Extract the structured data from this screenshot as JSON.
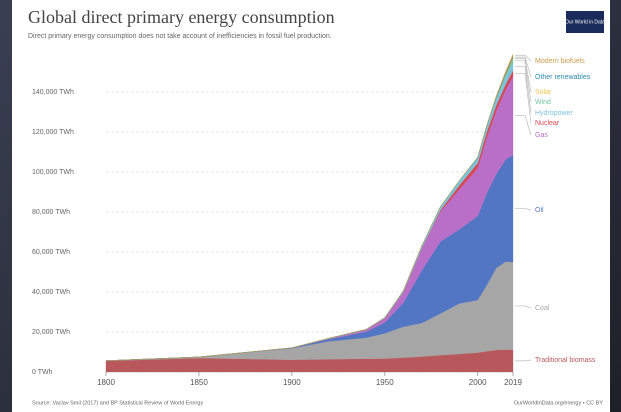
{
  "chart_data": {
    "type": "stacked-area",
    "title": "Global direct primary energy consumption",
    "subtitle": "Direct primary energy consumption does not take account of inefficiencies in fossil fuel production.",
    "logo": "Our World in Data",
    "source": "Source: Vaclav Smil (2017) and BP Statistical Review of World Energy",
    "credit": "OurWorldInData.org/energy • CC BY",
    "x": [
      1800,
      1850,
      1900,
      1920,
      1940,
      1950,
      1960,
      1970,
      1980,
      1990,
      2000,
      2005,
      2010,
      2015,
      2019
    ],
    "xlim": [
      1800,
      2019
    ],
    "xticks": [
      1800,
      1850,
      1900,
      1950,
      2000,
      2019
    ],
    "ylim": [
      0,
      160000
    ],
    "yticks": [
      {
        "value": 0,
        "label": "0 TWh"
      },
      {
        "value": 20000,
        "label": "20,000 TWh"
      },
      {
        "value": 40000,
        "label": "40,000 TWh"
      },
      {
        "value": 60000,
        "label": "60,000 TWh"
      },
      {
        "value": 80000,
        "label": "80,000 TWh"
      },
      {
        "value": 100000,
        "label": "100,000 TWh"
      },
      {
        "value": 120000,
        "label": "120,000 TWh"
      },
      {
        "value": 140000,
        "label": "140,000 TWh"
      }
    ],
    "grid": true,
    "series": [
      {
        "name": "Traditional biomass",
        "color": "#b8575c",
        "values": [
          5556,
          6945,
          6111,
          6360,
          6640,
          6700,
          7200,
          7700,
          8450,
          9000,
          9700,
          10400,
          11000,
          11200,
          11111
        ]
      },
      {
        "name": "Coal",
        "color": "#a6a6a6",
        "values": [
          97,
          569,
          5728,
          9000,
          10500,
          12603,
          15442,
          16800,
          20800,
          25200,
          26300,
          33200,
          41000,
          44000,
          43850
        ]
      },
      {
        "name": "Oil",
        "color": "#5276c4",
        "values": [
          0,
          0,
          181,
          1100,
          3000,
          5444,
          12000,
          26400,
          36000,
          37000,
          42000,
          46000,
          47000,
          51000,
          53620
        ]
      },
      {
        "name": "Gas",
        "color": "#b96fc8",
        "values": [
          0,
          0,
          64,
          230,
          900,
          2092,
          5300,
          11000,
          15000,
          20000,
          24000,
          28000,
          31600,
          35000,
          39292
        ]
      },
      {
        "name": "Nuclear",
        "color": "#d9474f",
        "values": [
          0,
          0,
          0,
          0,
          0,
          0,
          0,
          80,
          713,
          2000,
          2508,
          2700,
          2756,
          2600,
          2796
        ]
      },
      {
        "name": "Hydropower",
        "color": "#7cc3dc",
        "values": [
          0,
          0,
          0,
          200,
          300,
          332,
          688,
          1186,
          1725,
          2153,
          2613,
          2900,
          3425,
          3900,
          4222
        ]
      },
      {
        "name": "Wind",
        "color": "#74c7a2",
        "values": [
          0,
          0,
          0,
          0,
          0,
          0,
          0,
          0,
          0,
          10,
          31,
          100,
          342,
          831,
          1430
        ]
      },
      {
        "name": "Solar",
        "color": "#f0c24e",
        "values": [
          0,
          0,
          0,
          0,
          0,
          0,
          0,
          0,
          0,
          0,
          1,
          4,
          32,
          256,
          724
        ]
      },
      {
        "name": "Other renewables",
        "color": "#2e8aae",
        "values": [
          0,
          0,
          0,
          0,
          0,
          0,
          0,
          20,
          60,
          150,
          200,
          250,
          420,
          600,
          760
        ]
      },
      {
        "name": "Modern biofuels",
        "color": "#c99b4c",
        "values": [
          0,
          0,
          0,
          0,
          0,
          0,
          0,
          0,
          15,
          70,
          110,
          200,
          590,
          900,
          1135
        ]
      }
    ]
  }
}
